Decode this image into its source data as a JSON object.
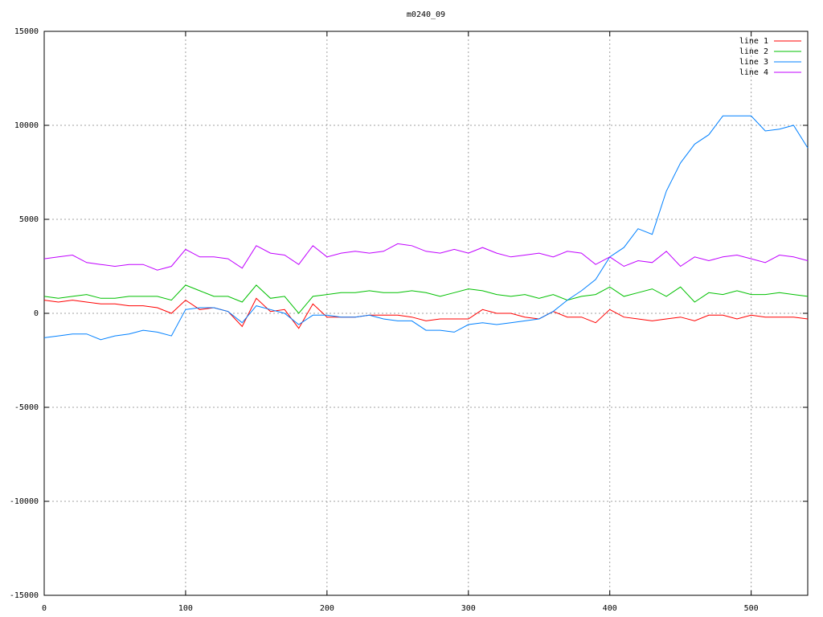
{
  "chart_data": {
    "type": "line",
    "title": "m0240_09",
    "x": [
      0,
      10,
      20,
      30,
      40,
      50,
      60,
      70,
      80,
      90,
      100,
      110,
      120,
      130,
      140,
      150,
      160,
      170,
      180,
      190,
      200,
      210,
      220,
      230,
      240,
      250,
      260,
      270,
      280,
      290,
      300,
      310,
      320,
      330,
      340,
      350,
      360,
      370,
      380,
      390,
      400,
      410,
      420,
      430,
      440,
      450,
      460,
      470,
      480,
      490,
      500,
      510,
      520,
      530,
      540
    ],
    "xlim": [
      0,
      540
    ],
    "xticks": [
      0,
      100,
      200,
      300,
      400,
      500
    ],
    "ylim": [
      -15000,
      15000
    ],
    "yticks": [
      -15000,
      -10000,
      -5000,
      0,
      5000,
      10000,
      15000
    ],
    "grid": true,
    "legend": "top-right",
    "series": [
      {
        "name": "line 1",
        "color": "#ff0000",
        "values": [
          700,
          600,
          700,
          600,
          500,
          500,
          400,
          400,
          300,
          0,
          700,
          200,
          300,
          100,
          -700,
          800,
          100,
          200,
          -800,
          500,
          -200,
          -200,
          -200,
          -100,
          -100,
          -100,
          -200,
          -400,
          -300,
          -300,
          -300,
          200,
          0,
          0,
          -200,
          -300,
          100,
          -200,
          -200,
          -500,
          200,
          -200,
          -300,
          -400,
          -300,
          -200,
          -400,
          -100,
          -100,
          -300,
          -100,
          -200,
          -200,
          -200,
          -300
        ]
      },
      {
        "name": "line 2",
        "color": "#00c000",
        "values": [
          900,
          800,
          900,
          1000,
          800,
          800,
          900,
          900,
          900,
          700,
          1500,
          1200,
          900,
          900,
          600,
          1500,
          800,
          900,
          0,
          900,
          1000,
          1100,
          1100,
          1200,
          1100,
          1100,
          1200,
          1100,
          900,
          1100,
          1300,
          1200,
          1000,
          900,
          1000,
          800,
          1000,
          700,
          900,
          1000,
          1400,
          900,
          1100,
          1300,
          900,
          1400,
          600,
          1100,
          1000,
          1200,
          1000,
          1000,
          1100,
          1000,
          900
        ]
      },
      {
        "name": "line 3",
        "color": "#0080ff",
        "values": [
          -1300,
          -1200,
          -1100,
          -1100,
          -1400,
          -1200,
          -1100,
          -900,
          -1000,
          -1200,
          200,
          300,
          300,
          100,
          -500,
          400,
          200,
          0,
          -600,
          -100,
          -100,
          -200,
          -200,
          -100,
          -300,
          -400,
          -400,
          -900,
          -900,
          -1000,
          -600,
          -500,
          -600,
          -500,
          -400,
          -300,
          100,
          700,
          1200,
          1800,
          3000,
          3500,
          4500,
          4200,
          6500,
          8000,
          9000,
          9500,
          10500,
          10500,
          10500,
          9700,
          9800,
          10000,
          8800
        ]
      },
      {
        "name": "line 4",
        "color": "#c000ff",
        "values": [
          2900,
          3000,
          3100,
          2700,
          2600,
          2500,
          2600,
          2600,
          2300,
          2500,
          3400,
          3000,
          3000,
          2900,
          2400,
          3600,
          3200,
          3100,
          2600,
          3600,
          3000,
          3200,
          3300,
          3200,
          3300,
          3700,
          3600,
          3300,
          3200,
          3400,
          3200,
          3500,
          3200,
          3000,
          3100,
          3200,
          3000,
          3300,
          3200,
          2600,
          3000,
          2500,
          2800,
          2700,
          3300,
          2500,
          3000,
          2800,
          3000,
          3100,
          2900,
          2700,
          3100,
          3000,
          2800
        ]
      }
    ]
  }
}
